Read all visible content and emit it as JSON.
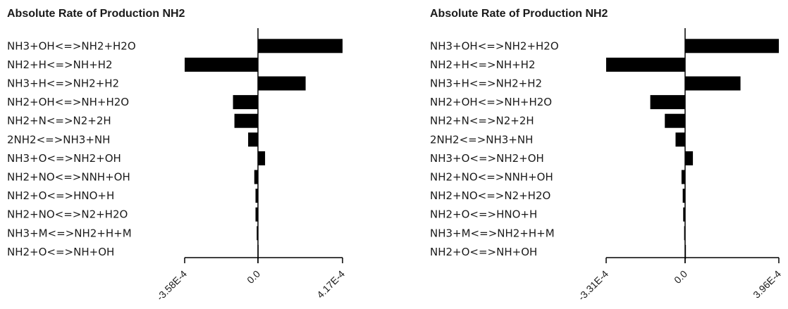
{
  "chart_data": [
    {
      "type": "bar",
      "orientation": "horizontal",
      "title": "Absolute Rate of Production NH2",
      "xlim": [
        -0.000358,
        0.000417
      ],
      "ticks": [
        "-3.58E-4",
        "0.0",
        "4.17E-4"
      ],
      "categories": [
        "NH3+OH<=>NH2+H2O",
        "NH2+H<=>NH+H2",
        "NH3+H<=>NH2+H2",
        "NH2+OH<=>NH+H2O",
        "NH2+N<=>N2+2H",
        "2NH2<=>NH3+NH",
        "NH3+O<=>NH2+OH",
        "NH2+NO<=>NNH+OH",
        "NH2+O<=>HNO+H",
        "NH2+NO<=>N2+H2O",
        "NH3+M<=>NH2+H+M",
        "NH2+O<=>NH+OH"
      ],
      "values": [
        0.000417,
        -0.000358,
        0.000235,
        -0.000122,
        -0.000115,
        -4.8e-05,
        3.5e-05,
        -1.8e-05,
        -1.2e-05,
        -1.2e-05,
        -6e-06,
        -2e-06
      ]
    },
    {
      "type": "bar",
      "orientation": "horizontal",
      "title": "Absolute Rate of Production NH2",
      "xlim": [
        -0.000331,
        0.000396
      ],
      "ticks": [
        "-3.31E-4",
        "0.0",
        "3.96E-4"
      ],
      "categories": [
        "NH3+OH<=>NH2+H2O",
        "NH2+H<=>NH+H2",
        "NH3+H<=>NH2+H2",
        "NH2+OH<=>NH+H2O",
        "NH2+N<=>N2+2H",
        "2NH2<=>NH3+NH",
        "NH3+O<=>NH2+OH",
        "NH2+NO<=>NNH+OH",
        "NH2+NO<=>N2+H2O",
        "NH2+O<=>HNO+H",
        "NH3+M<=>NH2+H+M",
        "NH2+O<=>NH+OH"
      ],
      "values": [
        0.000396,
        -0.000331,
        0.000234,
        -0.000146,
        -8.5e-05,
        -4e-05,
        3.3e-05,
        -1.5e-05,
        -1e-05,
        -8e-06,
        -4e-06,
        -1e-06
      ]
    }
  ]
}
